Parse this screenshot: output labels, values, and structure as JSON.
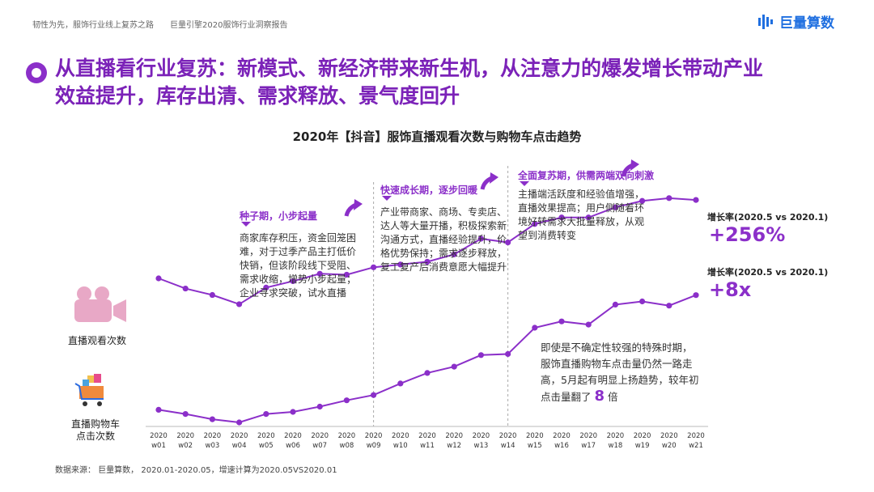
{
  "header": {
    "left_text": "韧性为先，服饰行业线上复苏之路",
    "center_text": "巨量引擎2020服饰行业洞察报告",
    "brand_name": "巨量算数"
  },
  "title": {
    "line1": "从直播看行业复苏：新模式、新经济带来新生机，从注意力的爆发增长带动产业",
    "line2": "效益提升，库存出清、需求释放、景气度回升"
  },
  "phases": [
    {
      "title": "种子期，小步起量",
      "text": "商家库存积压，资金回笼困难，对于过季产品主打低价快销，但该阶段线下受阻、需求收缩，增势小步起量；企业寻求突破，试水直播"
    },
    {
      "title": "快速成长期，逐步回暖",
      "text": "产业带商家、商场、专卖店、达人等大量开播，积极探索新沟通方式，直播经验提升，价格优势保持；需求逐步释放，复工复产后消费意愿大幅提升"
    },
    {
      "title": "全面复苏期，供需两端双向刺激",
      "text": "主播端活跃度和经验值增强，直播效果提高；用户侧随着环境好转需求大批量释放，从观望到消费转变"
    }
  ],
  "growth": [
    {
      "label": "增长率(2020.5 vs 2020.1)",
      "value": "+256%"
    },
    {
      "label": "增长率(2020.5 vs 2020.1)",
      "value": "+8x"
    }
  ],
  "annotation": {
    "line1": "即使是不确定性较强的特殊时期，",
    "line2": "服饰直播购物车点击量仍然一路走",
    "line3": "高，5月起有明显上扬趋势，较年初",
    "line4_prefix": "点击量翻了",
    "line4_num": "8",
    "line4_suffix": "倍"
  },
  "icons": {
    "views": "video-camera-icon",
    "cart": "shopping-cart-icon",
    "brand": "bar-logo-icon",
    "title": "ring-bullet-icon"
  },
  "colors": {
    "accent": "#8b2fc9",
    "brand": "#1f6fe0"
  },
  "source": "数据来源：  巨量算数，  2020.01-2020.05，增速计算为2020.05VS2020.01",
  "chart_data": {
    "type": "line",
    "title": "2020年【抖音】服饰直播观看次数与购物车点击趋势",
    "x": [
      "2020 w01",
      "2020 w02",
      "2020 w03",
      "2020 w04",
      "2020 w05",
      "2020 w06",
      "2020 w07",
      "2020 w08",
      "2020 w09",
      "2020 w10",
      "2020 w11",
      "2020 w12",
      "2020 w13",
      "2020 w14",
      "2020 w15",
      "2020 w16",
      "2020 w17",
      "2020 w18",
      "2020 w19",
      "2020 w20",
      "2020 w21"
    ],
    "x_top": [
      "2020",
      "2020",
      "2020",
      "2020",
      "2020",
      "2020",
      "2020",
      "2020",
      "2020",
      "2020",
      "2020",
      "2020",
      "2020",
      "2020",
      "2020",
      "2020",
      "2020",
      "2020",
      "2020",
      "2020",
      "2020"
    ],
    "x_bottom": [
      "w01",
      "w02",
      "w03",
      "w04",
      "w05",
      "w06",
      "w07",
      "w08",
      "w09",
      "w10",
      "w11",
      "w12",
      "w13",
      "w14",
      "w15",
      "w16",
      "w17",
      "w18",
      "w19",
      "w20",
      "w21"
    ],
    "series": [
      {
        "name": "直播观看次数",
        "values": [
          100,
          89,
          82,
          72,
          90,
          97,
          105,
          104,
          112,
          115,
          118,
          126,
          143,
          139,
          159,
          166,
          166,
          177,
          184,
          187,
          185
        ]
      },
      {
        "name": "直播购物车点击次数",
        "values": [
          12,
          8,
          3,
          0,
          8,
          10,
          15,
          21,
          26,
          37,
          47,
          53,
          64,
          65,
          90,
          96,
          93,
          112,
          115,
          111,
          121
        ]
      }
    ],
    "phase_dividers_after": [
      "w09",
      "w14"
    ],
    "ylim": [
      0,
      200
    ],
    "grid": false,
    "legend": "left"
  }
}
